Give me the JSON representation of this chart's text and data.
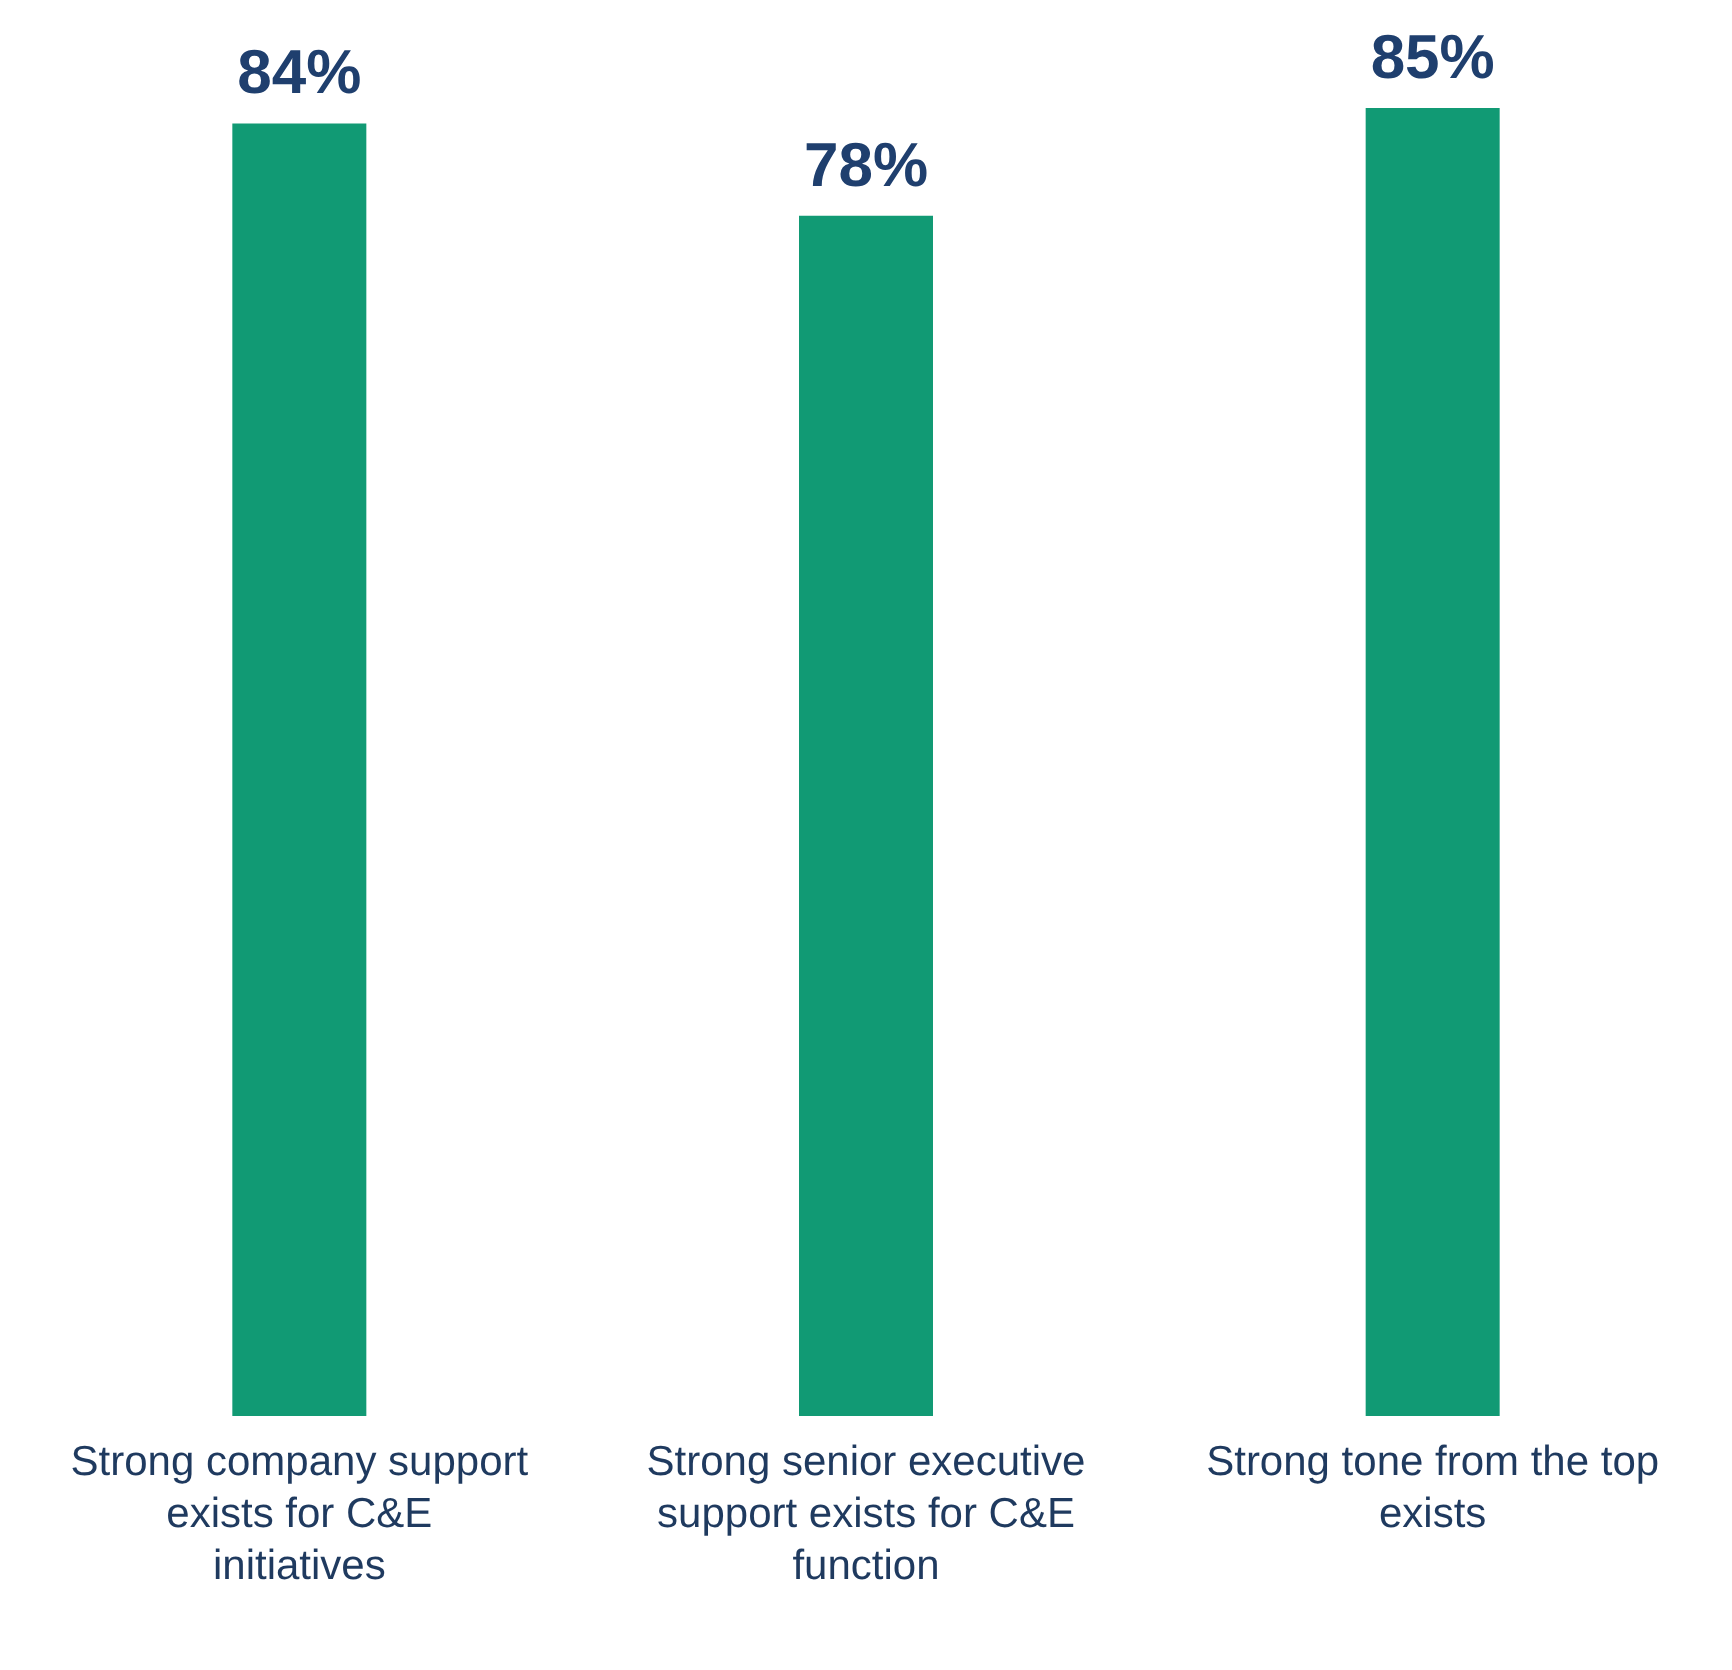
{
  "chart_data": {
    "type": "bar",
    "categories": [
      "Strong company support exists for C&E initiatives",
      "Strong senior executive support exists for C&E function",
      "Strong tone from the top exists"
    ],
    "values": [
      84,
      78,
      85
    ],
    "value_labels": [
      "84%",
      "78%",
      "85%"
    ],
    "color": "#119a74"
  }
}
